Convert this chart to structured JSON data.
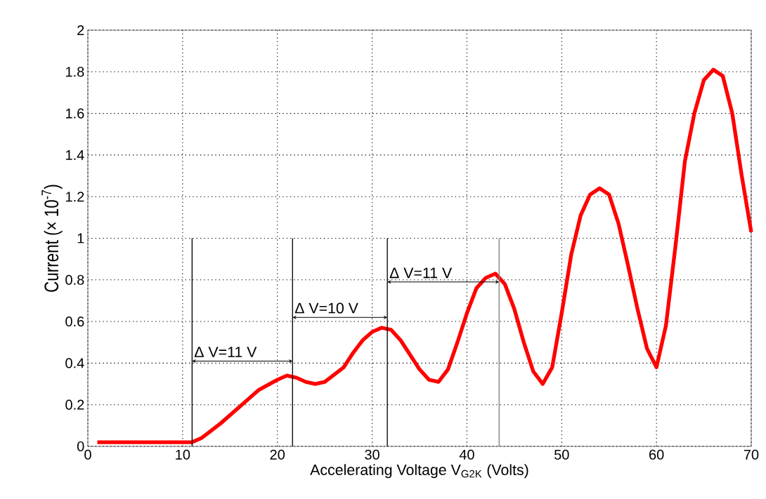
{
  "chart_data": {
    "type": "line",
    "xlabel": "Accelerating Voltage V$_{G2K}$ (Volts)",
    "ylabel": "Current (× 10$^{-7}$)",
    "xlim": [
      0,
      70
    ],
    "ylim": [
      0,
      2
    ],
    "xticks": [
      0,
      10,
      20,
      30,
      40,
      50,
      60,
      70
    ],
    "yticks": [
      0,
      0.2,
      0.4,
      0.6,
      0.8,
      1,
      1.2,
      1.4,
      1.6,
      1.8,
      2
    ],
    "grid": true,
    "marker": "none",
    "line_style": "solid",
    "series": [
      {
        "color": "#ff0000",
        "x": [
          1,
          11,
          12,
          14,
          16,
          18,
          20,
          21,
          22,
          23,
          24,
          25,
          27,
          28,
          29,
          30,
          31,
          32,
          33,
          34,
          35,
          36,
          37,
          38,
          39,
          40,
          41,
          42,
          43,
          44,
          45,
          46,
          47,
          48,
          49,
          50,
          51,
          52,
          53,
          54,
          55,
          56,
          57,
          58,
          59,
          60,
          61,
          62,
          63,
          64,
          65,
          66,
          67,
          68,
          69,
          70
        ],
        "values": [
          0.02,
          0.02,
          0.04,
          0.11,
          0.19,
          0.27,
          0.32,
          0.34,
          0.33,
          0.31,
          0.3,
          0.31,
          0.38,
          0.45,
          0.51,
          0.55,
          0.57,
          0.56,
          0.51,
          0.44,
          0.37,
          0.32,
          0.31,
          0.37,
          0.5,
          0.64,
          0.76,
          0.81,
          0.83,
          0.78,
          0.66,
          0.5,
          0.36,
          0.3,
          0.38,
          0.64,
          0.92,
          1.11,
          1.21,
          1.24,
          1.21,
          1.07,
          0.87,
          0.66,
          0.47,
          0.38,
          0.58,
          0.96,
          1.37,
          1.6,
          1.76,
          1.81,
          1.78,
          1.6,
          1.3,
          1.03
        ]
      }
    ],
    "ref_lines": [
      {
        "axis": "x",
        "value": 11,
        "color": "#000000"
      },
      {
        "axis": "x",
        "value": 21.6,
        "color": "#000000"
      },
      {
        "axis": "x",
        "value": 31.6,
        "color": "#000000"
      },
      {
        "axis": "x",
        "value": 43.4,
        "color": "#808080"
      }
    ],
    "annotations": [
      {
        "text": "Δ V=11 V",
        "x": 21.6,
        "y": 0.41
      },
      {
        "text": "Δ V=10 V",
        "x": 31.6,
        "y": 0.62
      },
      {
        "text": "Δ V=11 V",
        "x": 43.4,
        "y": 0.79
      }
    ]
  }
}
